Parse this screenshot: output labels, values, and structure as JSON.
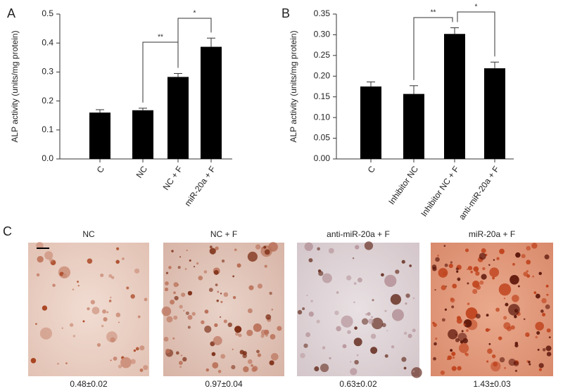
{
  "chart_data": [
    {
      "type": "bar",
      "label": "A",
      "ylabel": "ALP activity (units/mg protein)",
      "categories": [
        "C",
        "NC",
        "NC + F",
        "miR-20a + F"
      ],
      "values": [
        0.16,
        0.168,
        0.283,
        0.387
      ],
      "errors": [
        0.01,
        0.007,
        0.012,
        0.03
      ],
      "color": "#000000",
      "ylim": [
        0,
        0.5
      ],
      "yticks": [
        {
          "value": 0,
          "label": "0.0"
        },
        0.1,
        0.2,
        0.3,
        0.4,
        0.5
      ],
      "annotations": [
        {
          "text": "**",
          "between": [
            "NC",
            "NC + F"
          ]
        },
        {
          "text": "*",
          "between": [
            "NC + F",
            "miR-20a + F"
          ]
        }
      ]
    },
    {
      "type": "bar",
      "label": "B",
      "ylabel": "ALP activity (units/mg protein)",
      "categories": [
        "C",
        "Inhibitor NC",
        "Inhibitor NC + F",
        "anti-miR-20a + F"
      ],
      "values": [
        0.175,
        0.157,
        0.302,
        0.219
      ],
      "errors": [
        0.011,
        0.02,
        0.015,
        0.015
      ],
      "color": "#000000",
      "ylim": [
        0,
        0.35
      ],
      "yticks": [
        {
          "value": 0,
          "label": "0.00"
        },
        0.05,
        {
          "value": 0.1,
          "label": "0.10"
        },
        0.15,
        {
          "value": 0.2,
          "label": "0.20"
        },
        0.25,
        {
          "value": 0.3,
          "label": "0.30"
        },
        0.35
      ],
      "annotations": [
        {
          "text": "**",
          "between": [
            "Inhibitor NC",
            "Inhibitor NC + F"
          ]
        },
        {
          "text": "*",
          "between": [
            "Inhibitor NC + F",
            "anti-miR-20a + F"
          ]
        }
      ]
    }
  ],
  "panel_c": {
    "label": "C",
    "images": [
      {
        "title": "NC",
        "caption": "0.48±0.02"
      },
      {
        "title": "NC + F",
        "caption": "0.97±0.04"
      },
      {
        "title": "anti-miR-20a + F",
        "caption": "0.63±0.02"
      },
      {
        "title": "miR-20a + F",
        "caption": "1.43±0.03"
      }
    ]
  }
}
